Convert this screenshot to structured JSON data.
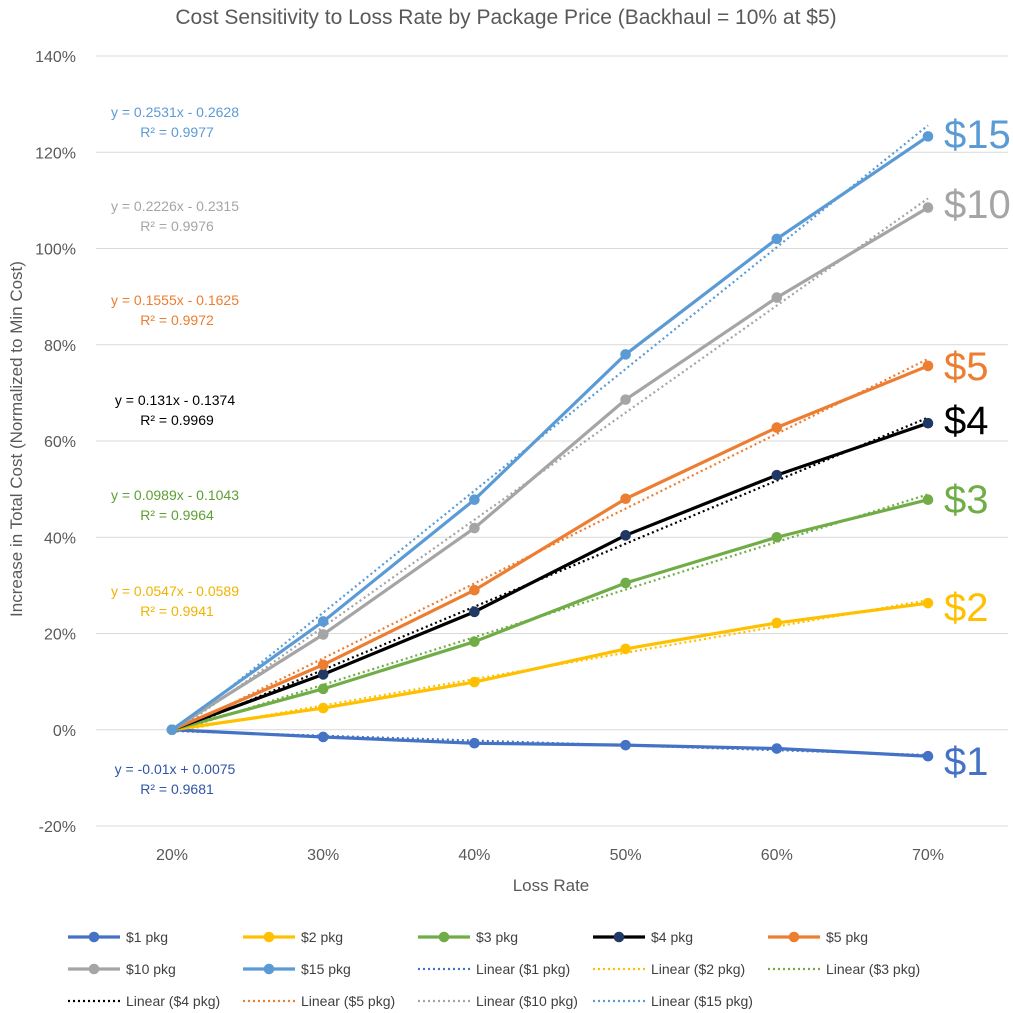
{
  "chart_data": {
    "type": "line",
    "title": "Cost Sensitivity to Loss Rate by Package Price (Backhaul = 10% at $5)",
    "xlabel": "Loss Rate",
    "ylabel": "Increase in Total Cost (Normalized to Min Cost)",
    "categories": [
      "20%",
      "30%",
      "40%",
      "50%",
      "60%",
      "70%"
    ],
    "ylim": [
      -0.2,
      1.4
    ],
    "yticks": [
      -0.2,
      0,
      0.2,
      0.4,
      0.6,
      0.8,
      1.0,
      1.2,
      1.4
    ],
    "ytick_labels": [
      "-20%",
      "0%",
      "20%",
      "40%",
      "60%",
      "80%",
      "100%",
      "120%",
      "140%"
    ],
    "grid": true,
    "legend_position": "bottom",
    "series": [
      {
        "name": "$1 pkg",
        "end_label": "$1",
        "color": "#4472C4",
        "marker_color": "#4472C4",
        "values": [
          0,
          -0.015,
          -0.028,
          -0.032,
          -0.039,
          -0.055
        ],
        "trend": {
          "name": "Linear ($1 pkg)",
          "slope": -0.01,
          "intercept": 0.0075,
          "equation": "y = -0.01x + 0.0075",
          "r2": "R² = 0.9681"
        }
      },
      {
        "name": "$2 pkg",
        "end_label": "$2",
        "color": "#FFC000",
        "marker_color": "#FFC000",
        "values": [
          0,
          0.045,
          0.099,
          0.168,
          0.222,
          0.263
        ],
        "trend": {
          "name": "Linear ($2 pkg)",
          "slope": 0.0547,
          "intercept": -0.0589,
          "equation": "y = 0.0547x - 0.0589",
          "r2": "R² = 0.9941"
        }
      },
      {
        "name": "$3 pkg",
        "end_label": "$3",
        "color": "#70AD47",
        "marker_color": "#70AD47",
        "values": [
          0,
          0.085,
          0.183,
          0.305,
          0.4,
          0.478
        ],
        "trend": {
          "name": "Linear ($3 pkg)",
          "slope": 0.0989,
          "intercept": -0.1043,
          "equation": "y = 0.0989x - 0.1043",
          "r2": "R² = 0.9964"
        }
      },
      {
        "name": "$4 pkg",
        "end_label": "$4",
        "color": "#000000",
        "marker_color": "#203864",
        "values": [
          0,
          0.115,
          0.245,
          0.404,
          0.529,
          0.637
        ],
        "trend": {
          "name": "Linear ($4 pkg)",
          "slope": 0.131,
          "intercept": -0.1374,
          "equation": "y = 0.131x - 0.1374",
          "r2": "R² = 0.9969"
        }
      },
      {
        "name": "$5 pkg",
        "end_label": "$5",
        "color": "#ED7D31",
        "marker_color": "#ED7D31",
        "values": [
          0,
          0.135,
          0.29,
          0.48,
          0.628,
          0.756
        ],
        "trend": {
          "name": "Linear ($5 pkg)",
          "slope": 0.1555,
          "intercept": -0.1625,
          "equation": "y = 0.1555x - 0.1625",
          "r2": "R² = 0.9972"
        }
      },
      {
        "name": "$10 pkg",
        "end_label": "$10",
        "color": "#A5A5A5",
        "marker_color": "#A5A5A5",
        "values": [
          0,
          0.198,
          0.419,
          0.686,
          0.898,
          1.085
        ],
        "trend": {
          "name": "Linear ($10 pkg)",
          "slope": 0.2226,
          "intercept": -0.2315,
          "equation": "y = 0.2226x - 0.2315",
          "r2": "R² = 0.9976"
        }
      },
      {
        "name": "$15 pkg",
        "end_label": "$15",
        "color": "#5B9BD5",
        "marker_color": "#5B9BD5",
        "values": [
          0,
          0.225,
          0.478,
          0.78,
          1.02,
          1.233
        ],
        "trend": {
          "name": "Linear ($15 pkg)",
          "slope": 0.2531,
          "intercept": -0.2628,
          "equation": "y = 0.2531x - 0.2628",
          "r2": "R² = 0.9977"
        }
      }
    ],
    "legend_order": [
      "$1 pkg",
      "$2 pkg",
      "$3 pkg",
      "$4 pkg",
      "$5 pkg",
      "$10 pkg",
      "$15 pkg",
      "Linear ($1 pkg)",
      "Linear ($2 pkg)",
      "Linear ($3 pkg)",
      "Linear ($4 pkg)",
      "Linear ($5 pkg)",
      "Linear ($10 pkg)",
      "Linear ($15 pkg)"
    ]
  }
}
